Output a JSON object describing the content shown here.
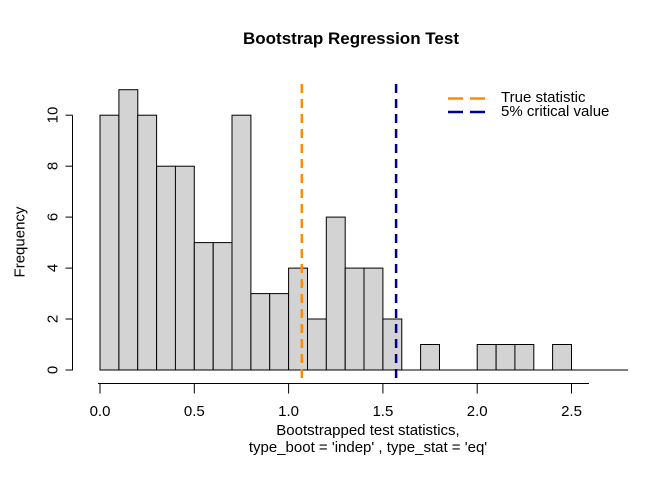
{
  "chart_data": {
    "type": "bar",
    "subtype": "histogram",
    "title": "Bootstrap Regression Test",
    "ylabel": "Frequency",
    "xlabel_line1": "Bootstrapped test statistics,",
    "xlabel_line2": "type_boot = 'indep' , type_stat = 'eq'",
    "bins": {
      "start": 0.0,
      "width": 0.1
    },
    "counts": [
      10,
      11,
      10,
      8,
      8,
      5,
      5,
      10,
      3,
      3,
      4,
      2,
      6,
      4,
      4,
      2,
      0,
      1,
      0,
      0,
      1,
      1,
      1,
      0,
      1,
      0,
      0,
      0
    ],
    "x_ticks": [
      {
        "value": 0.0,
        "label": "0.0"
      },
      {
        "value": 0.5,
        "label": "0.5"
      },
      {
        "value": 1.0,
        "label": "1.0"
      },
      {
        "value": 1.5,
        "label": "1.5"
      },
      {
        "value": 2.0,
        "label": "2.0"
      },
      {
        "value": 2.5,
        "label": "2.5"
      }
    ],
    "y_ticks": [
      {
        "value": 0,
        "label": "0"
      },
      {
        "value": 2,
        "label": "2"
      },
      {
        "value": 4,
        "label": "4"
      },
      {
        "value": 6,
        "label": "6"
      },
      {
        "value": 8,
        "label": "8"
      },
      {
        "value": 10,
        "label": "10"
      }
    ],
    "ylim": [
      0,
      11
    ],
    "xlim": [
      0,
      2.8
    ],
    "bar_fill": "#d3d3d3",
    "bar_stroke": "#000000",
    "grid": "off",
    "legend_position": "top-right",
    "vlines": [
      {
        "label": "True statistic",
        "value": 1.07,
        "color": "#ff8c00",
        "style": "dashed"
      },
      {
        "label": "5% critical value",
        "value": 1.57,
        "color": "#00008b",
        "style": "dashed"
      }
    ]
  }
}
